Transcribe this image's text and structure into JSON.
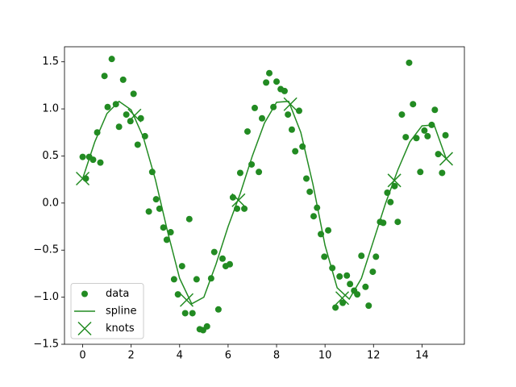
{
  "chart_data": {
    "type": "combo",
    "xlim": [
      -0.75,
      15.75
    ],
    "ylim": [
      -1.5,
      1.66
    ],
    "xticks": [
      0,
      2,
      4,
      6,
      8,
      10,
      12,
      14
    ],
    "yticks": [
      {
        "value": -1.5,
        "label": "−1.5"
      },
      {
        "value": -1.0,
        "label": "−1.0"
      },
      {
        "value": -0.5,
        "label": "−0.5"
      },
      {
        "value": 0,
        "label": "0.0"
      },
      0.5,
      {
        "value": 1.0,
        "label": "1.0"
      },
      1.5
    ],
    "legend": "lower left",
    "series": [
      {
        "name": "data",
        "type": "scatter",
        "color": "#228b22",
        "x": [
          0,
          0.13,
          0.27,
          0.43,
          0.6,
          0.73,
          0.9,
          1.03,
          1.2,
          1.37,
          1.5,
          1.67,
          1.8,
          1.97,
          2.1,
          2.27,
          2.4,
          2.57,
          2.73,
          2.87,
          3.03,
          3.17,
          3.33,
          3.47,
          3.63,
          3.77,
          3.93,
          4.1,
          4.23,
          4.4,
          4.53,
          4.7,
          4.83,
          4.97,
          5.13,
          5.3,
          5.43,
          5.6,
          5.77,
          5.9,
          6.07,
          6.2,
          6.37,
          6.5,
          6.67,
          6.8,
          6.97,
          7.1,
          7.27,
          7.4,
          7.57,
          7.7,
          7.87,
          8,
          8.17,
          8.33,
          8.47,
          8.63,
          8.77,
          8.93,
          9.07,
          9.23,
          9.37,
          9.53,
          9.67,
          9.83,
          9.97,
          10.13,
          10.3,
          10.43,
          10.6,
          10.73,
          10.9,
          11.03,
          11.2,
          11.33,
          11.5,
          11.67,
          11.8,
          11.97,
          12.1,
          12.27,
          12.4,
          12.57,
          12.7,
          12.87,
          13,
          13.17,
          13.33,
          13.47,
          13.63,
          13.77,
          13.93,
          14.1,
          14.23,
          14.4,
          14.53,
          14.67,
          14.83,
          14.97
        ],
        "values": [
          0.49,
          0.26,
          0.49,
          0.46,
          0.75,
          0.43,
          1.35,
          1.02,
          1.53,
          1.05,
          0.81,
          1.31,
          0.94,
          0.87,
          1.16,
          0.62,
          0.9,
          0.71,
          -0.09,
          0.33,
          0.04,
          -0.06,
          -0.26,
          -0.39,
          -0.31,
          -0.81,
          -0.97,
          -0.67,
          -1.17,
          -0.17,
          -1.17,
          -0.81,
          -1.34,
          -1.35,
          -1.31,
          -0.8,
          -0.52,
          -1.13,
          -0.59,
          -0.67,
          -0.65,
          0.06,
          -0.06,
          0.32,
          -0.06,
          0.76,
          0.41,
          1.01,
          0.33,
          0.9,
          1.28,
          1.38,
          1.02,
          1.29,
          1.21,
          1.19,
          0.94,
          0.78,
          0.55,
          0.98,
          0.6,
          0.26,
          0.12,
          -0.14,
          -0.05,
          -0.33,
          -0.57,
          -0.29,
          -0.69,
          -1.11,
          -0.78,
          -1.06,
          -0.77,
          -0.86,
          -0.93,
          -0.97,
          -0.56,
          -0.89,
          -1.09,
          -0.73,
          -0.57,
          -0.2,
          -0.21,
          0.11,
          0.01,
          0.18,
          -0.2,
          0.94,
          0.7,
          1.49,
          1.05,
          0.69,
          0.33,
          0.77,
          0.71,
          0.83,
          0.99,
          0.52,
          0.32,
          0.72
        ]
      },
      {
        "name": "spline",
        "type": "line",
        "color": "#228b22",
        "x": [
          0,
          0.5,
          1,
          1.5,
          2,
          2.5,
          3,
          3.5,
          4,
          4.5,
          5,
          5.5,
          6,
          6.5,
          7,
          7.5,
          8,
          8.5,
          9,
          9.5,
          10,
          10.5,
          11,
          11.5,
          12,
          12.5,
          13,
          13.5,
          14,
          14.5,
          15
        ],
        "values": [
          0.26,
          0.65,
          0.95,
          1.08,
          0.99,
          0.7,
          0.25,
          -0.3,
          -0.8,
          -1.07,
          -1.0,
          -0.65,
          -0.25,
          0.1,
          0.5,
          0.85,
          1.07,
          1.08,
          0.75,
          0.2,
          -0.45,
          -0.9,
          -1.02,
          -0.8,
          -0.4,
          0.0,
          0.35,
          0.65,
          0.82,
          0.83,
          0.47
        ]
      },
      {
        "name": "knots",
        "type": "knots",
        "color": "#228b22",
        "x": [
          0,
          2.14,
          4.29,
          6.43,
          8.57,
          10.71,
          12.86,
          15
        ],
        "values": [
          0.26,
          0.93,
          -1.03,
          0.03,
          1.05,
          -1.01,
          0.24,
          0.47
        ]
      }
    ]
  }
}
